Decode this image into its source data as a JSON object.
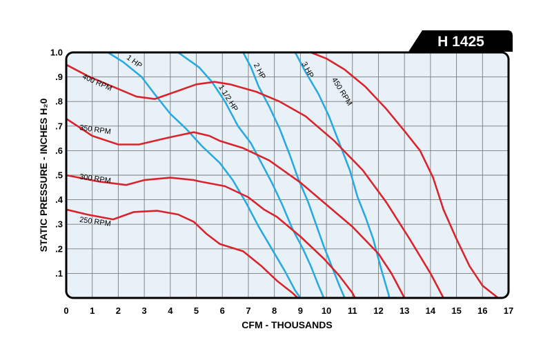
{
  "chart_data": {
    "type": "line",
    "model": "H 1425",
    "xlabel": "CFM - THOUSANDS",
    "ylabel": "STATIC PRESSURE - INCHES H₂0",
    "xlim": [
      0,
      17
    ],
    "ylim": [
      0,
      1.0
    ],
    "grid": true,
    "x_ticks": [
      "0",
      "1",
      "2",
      "3",
      "4",
      "5",
      "6",
      "7",
      "8",
      "9",
      "10",
      "11",
      "12",
      "13",
      "14",
      "15",
      "16",
      "17"
    ],
    "y_ticks": [
      {
        "value": 0.1,
        "label": ".1"
      },
      {
        "value": 0.2,
        "label": ".2"
      },
      {
        "value": 0.3,
        "label": ".3"
      },
      {
        "value": 0.4,
        "label": ".4"
      },
      {
        "value": 0.5,
        "label": ".5"
      },
      {
        "value": 0.6,
        "label": ".6"
      },
      {
        "value": 0.7,
        "label": ".7"
      },
      {
        "value": 0.8,
        "label": ".8"
      },
      {
        "value": 0.9,
        "label": ".9"
      },
      {
        "value": 1.0,
        "label": "1.0"
      }
    ],
    "colors": {
      "rpm": "#d9232d",
      "hp": "#29a9e1",
      "grid": "#7a7a7a",
      "plot_bg": "#e8f1f7"
    },
    "rpm_curves": [
      {
        "name": "250 RPM",
        "label_at": [
          0.5,
          0.31
        ],
        "points": [
          [
            0,
            0.36
          ],
          [
            0.8,
            0.34
          ],
          [
            1.8,
            0.32
          ],
          [
            2.6,
            0.35
          ],
          [
            3.5,
            0.355
          ],
          [
            4.3,
            0.34
          ],
          [
            4.9,
            0.31
          ],
          [
            5.4,
            0.26
          ],
          [
            5.9,
            0.22
          ],
          [
            6.8,
            0.19
          ],
          [
            7.5,
            0.13
          ],
          [
            8.1,
            0.07
          ],
          [
            8.7,
            0.02
          ],
          [
            8.9,
            0
          ]
        ]
      },
      {
        "name": "300 RPM",
        "label_at": [
          0.5,
          0.485
        ],
        "points": [
          [
            0,
            0.5
          ],
          [
            1.2,
            0.475
          ],
          [
            2.3,
            0.46
          ],
          [
            3.0,
            0.48
          ],
          [
            4.0,
            0.49
          ],
          [
            4.9,
            0.48
          ],
          [
            5.1,
            0.475
          ],
          [
            6.1,
            0.455
          ],
          [
            7.0,
            0.41
          ],
          [
            7.6,
            0.36
          ],
          [
            8.1,
            0.33
          ],
          [
            9.0,
            0.25
          ],
          [
            9.9,
            0.16
          ],
          [
            10.5,
            0.09
          ],
          [
            11.0,
            0.02
          ],
          [
            11.1,
            0
          ]
        ]
      },
      {
        "name": "350 RPM",
        "label_at": [
          0.5,
          0.685
        ],
        "points": [
          [
            0,
            0.73
          ],
          [
            1.0,
            0.66
          ],
          [
            2.0,
            0.625
          ],
          [
            2.8,
            0.625
          ],
          [
            3.8,
            0.65
          ],
          [
            4.9,
            0.675
          ],
          [
            5.5,
            0.66
          ],
          [
            5.9,
            0.64
          ],
          [
            6.8,
            0.61
          ],
          [
            7.8,
            0.56
          ],
          [
            9.0,
            0.47
          ],
          [
            10.0,
            0.38
          ],
          [
            11.0,
            0.29
          ],
          [
            12.0,
            0.18
          ],
          [
            12.5,
            0.1
          ],
          [
            12.9,
            0.02
          ],
          [
            13.0,
            0
          ]
        ]
      },
      {
        "name": "400 RPM",
        "label_at": [
          0.6,
          0.895
        ],
        "points": [
          [
            0,
            0.95
          ],
          [
            0.9,
            0.9
          ],
          [
            1.8,
            0.86
          ],
          [
            2.7,
            0.82
          ],
          [
            3.4,
            0.81
          ],
          [
            4.2,
            0.84
          ],
          [
            5.0,
            0.87
          ],
          [
            5.7,
            0.88
          ],
          [
            6.3,
            0.87
          ],
          [
            7.3,
            0.84
          ],
          [
            8.2,
            0.8
          ],
          [
            9.2,
            0.74
          ],
          [
            10.3,
            0.64
          ],
          [
            11.4,
            0.52
          ],
          [
            12.3,
            0.39
          ],
          [
            13.2,
            0.24
          ],
          [
            14.0,
            0.1
          ],
          [
            14.5,
            0
          ]
        ]
      },
      {
        "name": "450 RPM",
        "label_at": [
          10.2,
          0.89
        ],
        "points": [
          [
            9.4,
            1.0
          ],
          [
            10.0,
            0.975
          ],
          [
            10.7,
            0.93
          ],
          [
            11.5,
            0.86
          ],
          [
            12.3,
            0.77
          ],
          [
            13.0,
            0.68
          ],
          [
            13.6,
            0.6
          ],
          [
            14.1,
            0.49
          ],
          [
            14.5,
            0.36
          ],
          [
            15.0,
            0.24
          ],
          [
            15.5,
            0.13
          ],
          [
            16.0,
            0.05
          ],
          [
            16.6,
            0
          ]
        ]
      }
    ],
    "hp_curves": [
      {
        "name": "1 HP",
        "label_at": [
          2.3,
          0.975
        ],
        "label_angle": 36,
        "points": [
          [
            1.6,
            1.0
          ],
          [
            2.2,
            0.96
          ],
          [
            2.9,
            0.9
          ],
          [
            3.4,
            0.83
          ],
          [
            4.0,
            0.75
          ],
          [
            4.6,
            0.69
          ],
          [
            5.2,
            0.62
          ],
          [
            5.9,
            0.55
          ],
          [
            6.4,
            0.48
          ],
          [
            6.9,
            0.39
          ],
          [
            7.4,
            0.29
          ],
          [
            7.9,
            0.2
          ],
          [
            8.4,
            0.11
          ],
          [
            8.8,
            0.03
          ],
          [
            9.0,
            0
          ]
        ]
      },
      {
        "name": "1 1/2 HP",
        "label_at": [
          5.85,
          0.86
        ],
        "label_angle": 58,
        "points": [
          [
            4.3,
            1.0
          ],
          [
            5.1,
            0.94
          ],
          [
            5.6,
            0.88
          ],
          [
            6.1,
            0.8
          ],
          [
            6.6,
            0.7
          ],
          [
            7.1,
            0.63
          ],
          [
            7.5,
            0.55
          ],
          [
            7.9,
            0.47
          ],
          [
            8.3,
            0.38
          ],
          [
            8.7,
            0.28
          ],
          [
            9.1,
            0.2
          ],
          [
            9.4,
            0.13
          ],
          [
            9.7,
            0.05
          ],
          [
            9.9,
            0
          ]
        ]
      },
      {
        "name": "2 HP",
        "label_at": [
          7.2,
          0.95
        ],
        "label_angle": 62,
        "points": [
          [
            6.8,
            1.0
          ],
          [
            7.1,
            0.94
          ],
          [
            7.4,
            0.86
          ],
          [
            7.8,
            0.78
          ],
          [
            8.2,
            0.69
          ],
          [
            8.6,
            0.58
          ],
          [
            8.9,
            0.49
          ],
          [
            9.3,
            0.39
          ],
          [
            9.6,
            0.3
          ],
          [
            9.9,
            0.21
          ],
          [
            10.2,
            0.13
          ],
          [
            10.5,
            0.05
          ],
          [
            10.7,
            0
          ]
        ]
      },
      {
        "name": "3 HP",
        "label_at": [
          9.05,
          0.955
        ],
        "label_angle": 62,
        "points": [
          [
            8.8,
            1.0
          ],
          [
            9.2,
            0.92
          ],
          [
            9.7,
            0.83
          ],
          [
            10.1,
            0.74
          ],
          [
            10.5,
            0.63
          ],
          [
            10.9,
            0.52
          ],
          [
            11.2,
            0.41
          ],
          [
            11.5,
            0.33
          ],
          [
            11.8,
            0.24
          ],
          [
            12.1,
            0.12
          ],
          [
            12.4,
            0.01
          ],
          [
            12.4,
            0
          ]
        ]
      }
    ]
  }
}
